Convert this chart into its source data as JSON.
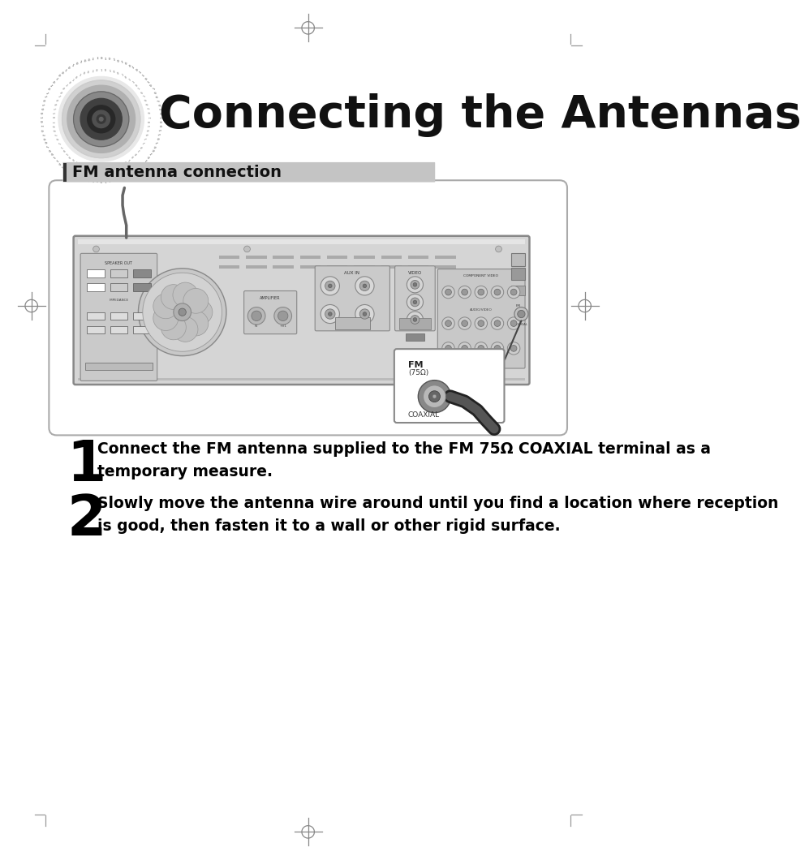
{
  "title": "Connecting the Antennas",
  "section_label": "FM antenna connection",
  "step1_number": "1",
  "step1_text": "Connect the FM antenna supplied to the FM 75Ω COAXIAL terminal as a\ntemporary measure.",
  "step2_number": "2",
  "step2_text": "Slowly move the antenna wire around until you find a location where reception\nis good, then fasten it to a wall or other rigid surface.",
  "bg_color": "#ffffff",
  "border_color": "#bbbbbb",
  "section_bar_color": "#c0c0c0",
  "text_color": "#000000",
  "step_num_color": "#000000"
}
